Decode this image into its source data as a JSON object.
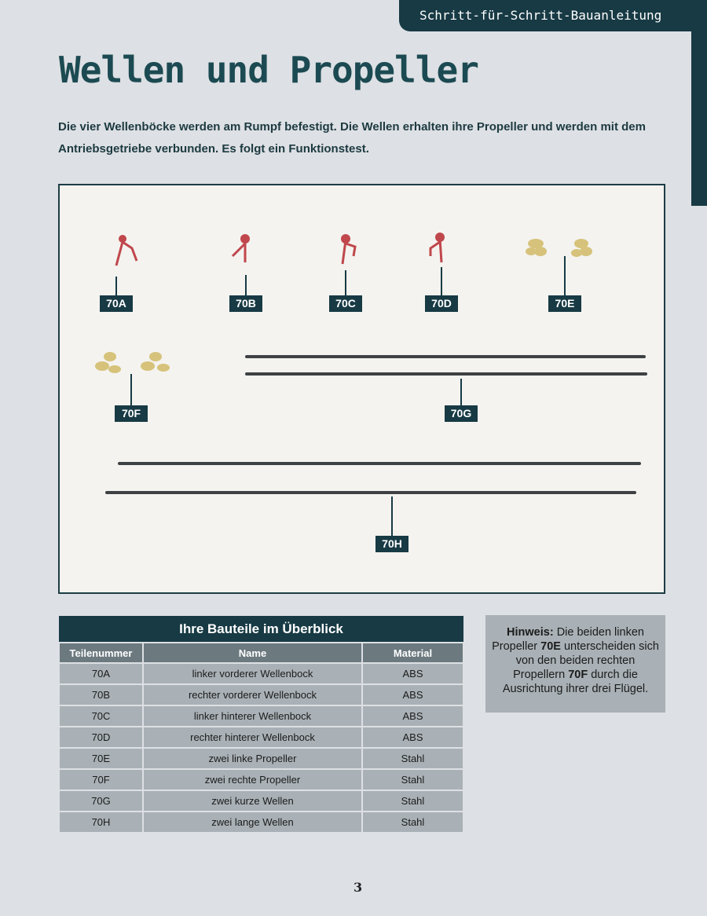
{
  "header": {
    "section": "Schritt-für-Schritt-Bauanleitung"
  },
  "title": "Wellen und Propeller",
  "intro": "Die vier Wellenböcke werden am Rumpf befestigt. Die Wellen erhalten ihre Propeller und werden mit dem Antriebsgetriebe verbunden. Es folgt ein Funktionstest.",
  "photo": {
    "labels": [
      "70A",
      "70B",
      "70C",
      "70D",
      "70E",
      "70F",
      "70G",
      "70H"
    ]
  },
  "table": {
    "title": "Ihre Bauteile im Überblick",
    "headers": [
      "Teilenummer",
      "Name",
      "Material"
    ],
    "rows": [
      [
        "70A",
        "linker vorderer Wellenbock",
        "ABS"
      ],
      [
        "70B",
        "rechter vorderer Wellenbock",
        "ABS"
      ],
      [
        "70C",
        "linker hinterer Wellenbock",
        "ABS"
      ],
      [
        "70D",
        "rechter hinterer Wellenbock",
        "ABS"
      ],
      [
        "70E",
        "zwei linke Propeller",
        "Stahl"
      ],
      [
        "70F",
        "zwei rechte Propeller",
        "Stahl"
      ],
      [
        "70G",
        "zwei kurze Wellen",
        "Stahl"
      ],
      [
        "70H",
        "zwei lange Wellen",
        "Stahl"
      ]
    ]
  },
  "note": {
    "label": "Hinweis:",
    "t1": " Die beiden linken Propeller ",
    "p1": "70E",
    "t2": " unterscheiden sich von den beiden rechten Propellern ",
    "p2": "70F",
    "t3": " durch die Ausrichtung ihrer drei Flügel."
  },
  "page_number": "3"
}
